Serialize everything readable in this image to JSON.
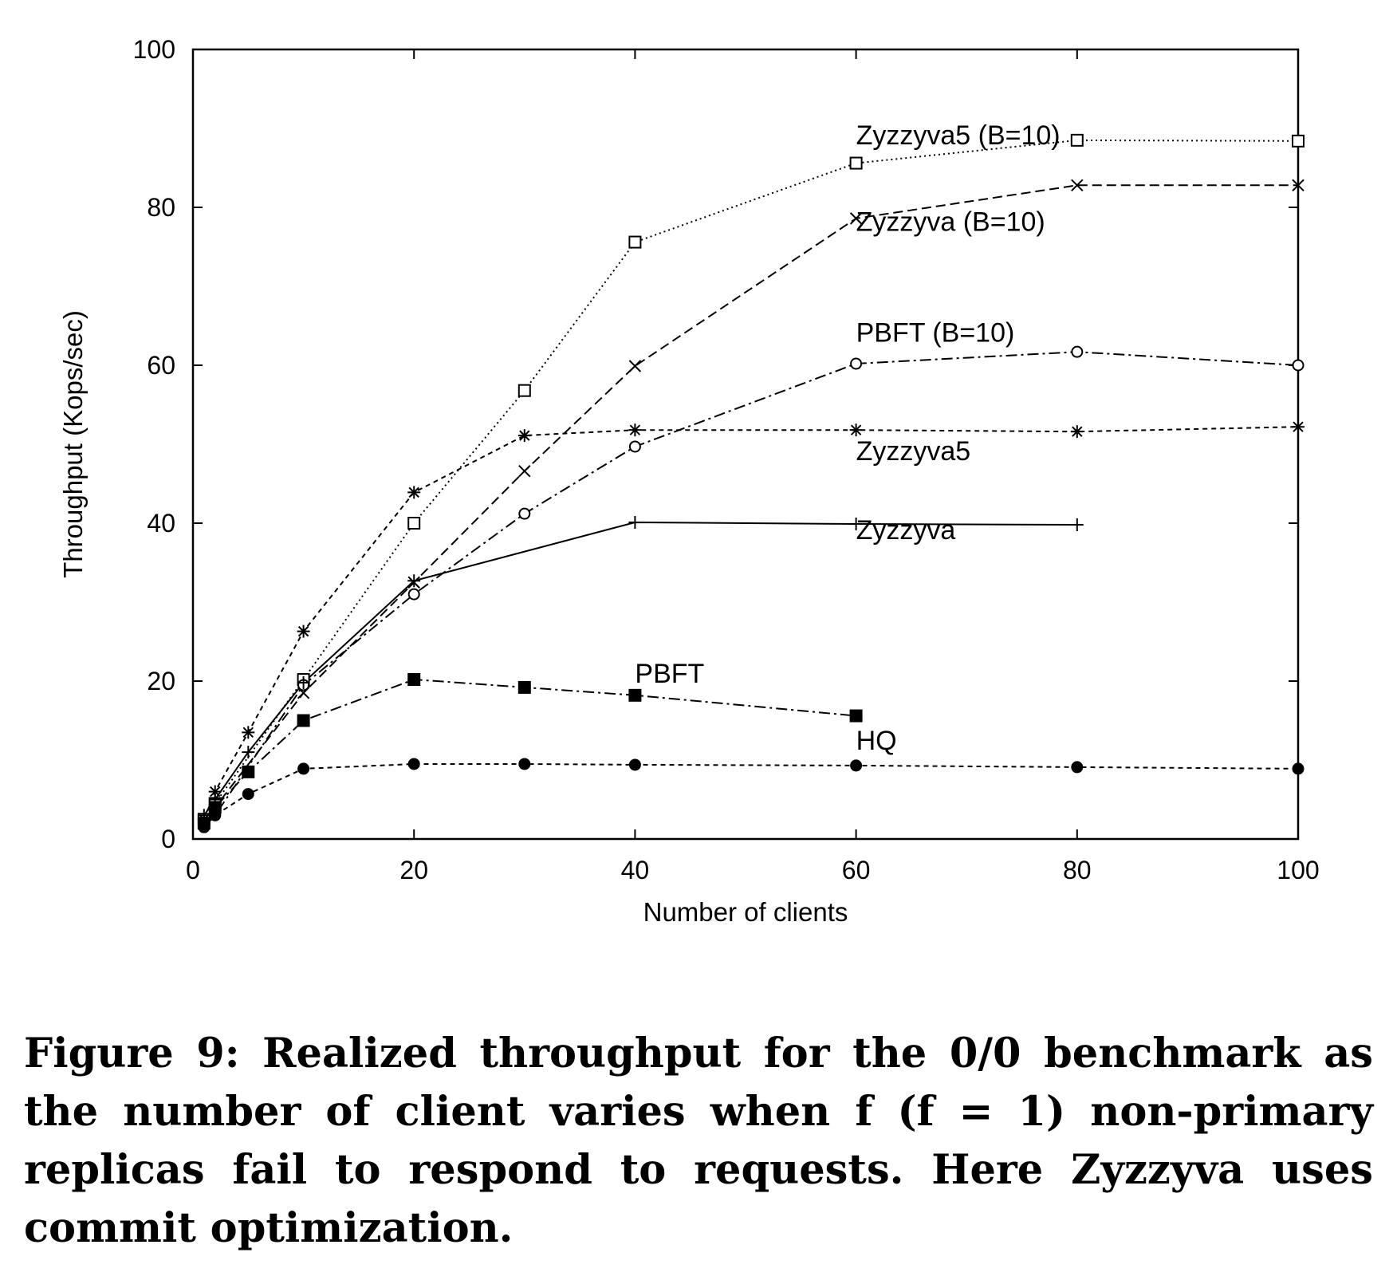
{
  "chart_data": {
    "type": "line",
    "xlabel": "Number of clients",
    "ylabel": "Throughput (Kops/sec)",
    "xlim": [
      0,
      100
    ],
    "ylim": [
      0,
      100
    ],
    "xticks": [
      0,
      20,
      40,
      60,
      80,
      100
    ],
    "yticks": [
      0,
      20,
      40,
      60,
      80,
      100
    ],
    "grid": false,
    "legend": "inline labels near curves",
    "series": [
      {
        "name": "Zyzzyva5 (B=10)",
        "marker": "open-square",
        "dash": "dotted",
        "x": [
          1,
          2,
          10,
          20,
          30,
          40,
          60,
          80,
          100
        ],
        "y": [
          2.5,
          4.5,
          20.2,
          40.0,
          56.8,
          75.6,
          85.6,
          88.5,
          88.4
        ],
        "label_at": [
          60,
          88
        ]
      },
      {
        "name": "Zyzzyva (B=10)",
        "marker": "x",
        "dash": "dashed",
        "x": [
          1,
          2,
          10,
          20,
          30,
          40,
          60,
          80,
          100
        ],
        "y": [
          2.0,
          4.0,
          18.5,
          32.5,
          46.6,
          59.9,
          78.6,
          82.8,
          82.8
        ],
        "label_at": [
          60,
          77
        ]
      },
      {
        "name": "PBFT (B=10)",
        "marker": "open-circle",
        "dash": "dash-dot",
        "x": [
          1,
          2,
          10,
          20,
          30,
          40,
          60,
          80,
          100
        ],
        "y": [
          1.5,
          3.0,
          19.5,
          31.0,
          41.2,
          49.7,
          60.2,
          61.7,
          60.0
        ],
        "label_at": [
          60,
          63
        ]
      },
      {
        "name": "Zyzzyva5",
        "marker": "asterisk",
        "dash": "dashed-short",
        "x": [
          1,
          2,
          5,
          10,
          20,
          30,
          40,
          60,
          80,
          100
        ],
        "y": [
          2.5,
          6.0,
          13.5,
          26.3,
          43.9,
          51.1,
          51.8,
          51.8,
          51.6,
          52.2
        ],
        "label_at": [
          60,
          48
        ]
      },
      {
        "name": "Zyzzyva",
        "marker": "plus",
        "dash": "solid",
        "x": [
          1,
          2,
          5,
          10,
          20,
          40,
          60,
          80
        ],
        "y": [
          3.0,
          5.0,
          11.0,
          19.8,
          32.7,
          40.1,
          39.9,
          39.8
        ],
        "label_at": [
          60,
          38
        ]
      },
      {
        "name": "PBFT",
        "marker": "filled-square",
        "dash": "dash-dot",
        "x": [
          1,
          2,
          5,
          10,
          20,
          30,
          40,
          60
        ],
        "y": [
          2.0,
          4.0,
          8.5,
          15.0,
          20.2,
          19.2,
          18.2,
          15.6
        ],
        "label_at": [
          40,
          19.8
        ]
      },
      {
        "name": "HQ",
        "marker": "filled-circle",
        "dash": "dashed-short",
        "x": [
          1,
          2,
          5,
          10,
          20,
          30,
          40,
          60,
          80,
          100
        ],
        "y": [
          1.5,
          3.0,
          5.7,
          8.9,
          9.5,
          9.5,
          9.4,
          9.3,
          9.1,
          8.9
        ],
        "label_at": [
          60,
          11.3
        ]
      }
    ]
  },
  "caption": "Figure 9: Realized throughput for the 0/0 benchmark as the number of client varies when f (f = 1) non-primary replicas fail to respond to requests. Here Zyzzyva uses commit optimization."
}
